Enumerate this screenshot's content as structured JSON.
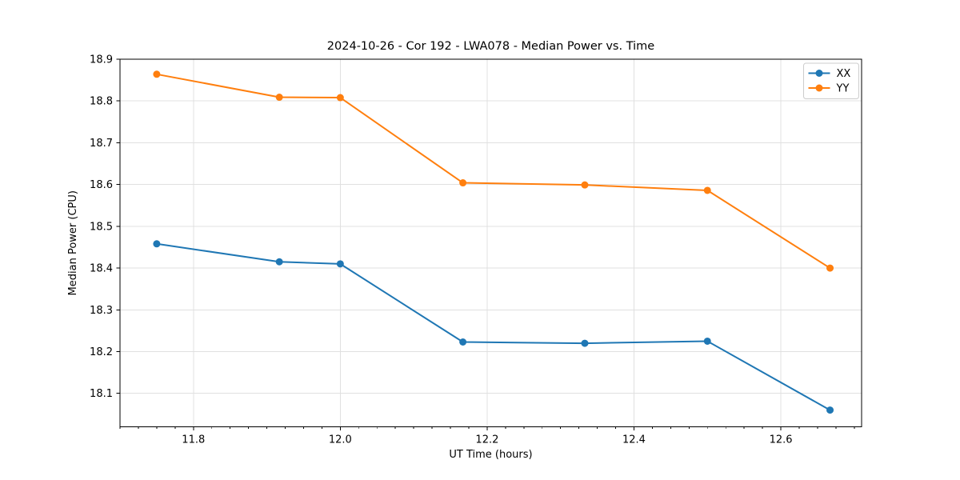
{
  "figure": {
    "background": "#ffffff"
  },
  "chart_data": {
    "type": "line",
    "title": "2024-10-26 - Cor 192 - LWA078 - Median Power vs. Time",
    "xlabel": "UT Time (hours)",
    "ylabel": "Median Power (CPU)",
    "x": [
      11.75,
      11.917,
      12.0,
      12.167,
      12.333,
      12.5,
      12.667
    ],
    "series": [
      {
        "name": "XX",
        "color": "#1f77b4",
        "marker": "circle",
        "values": [
          18.458,
          18.415,
          18.41,
          18.223,
          18.22,
          18.225,
          18.06
        ]
      },
      {
        "name": "YY",
        "color": "#ff7f0e",
        "marker": "circle",
        "values": [
          18.864,
          18.809,
          18.808,
          18.604,
          18.599,
          18.586,
          18.4
        ]
      }
    ],
    "xlim": [
      11.7,
      12.71
    ],
    "ylim": [
      18.02,
      18.9
    ],
    "xticks": [
      11.8,
      12.0,
      12.2,
      12.4,
      12.6
    ],
    "xtick_labels": [
      "11.8",
      "12.0",
      "12.2",
      "12.4",
      "12.6"
    ],
    "x_minor_tick_step": 0.025,
    "yticks": [
      18.1,
      18.2,
      18.3,
      18.4,
      18.5,
      18.6,
      18.7,
      18.8,
      18.9
    ],
    "ytick_labels": [
      "18.1",
      "18.2",
      "18.3",
      "18.4",
      "18.5",
      "18.6",
      "18.7",
      "18.8",
      "18.9"
    ],
    "grid": true,
    "grid_color": "#e0e0e0",
    "spine_color": "#000000",
    "legend": {
      "position": "upper right",
      "entries": [
        "XX",
        "YY"
      ],
      "border_color": "#cccccc",
      "background": "#ffffff"
    }
  }
}
